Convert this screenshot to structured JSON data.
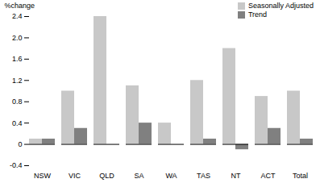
{
  "chart_data": {
    "type": "bar",
    "y_label": "%change",
    "categories": [
      "NSW",
      "VIC",
      "QLD",
      "SA",
      "WA",
      "TAS",
      "NT",
      "ACT",
      "Total"
    ],
    "series": [
      {
        "name": "Seasonally Adjusted",
        "color": "#c8c8c8",
        "values": [
          0.1,
          1.0,
          2.4,
          1.1,
          0.4,
          1.2,
          1.8,
          0.9,
          1.0
        ]
      },
      {
        "name": "Trend",
        "color": "#808080",
        "values": [
          0.1,
          0.3,
          0.0,
          0.4,
          0.0,
          0.1,
          -0.1,
          0.3,
          0.1
        ]
      }
    ],
    "ylim": [
      -0.4,
      2.4
    ],
    "yticks": [
      -0.4,
      0,
      0.4,
      0.8,
      1.2,
      1.6,
      {
        "value": 2,
        "label": "2.0"
      },
      2.4
    ],
    "grid": false,
    "legend": "top-right"
  }
}
